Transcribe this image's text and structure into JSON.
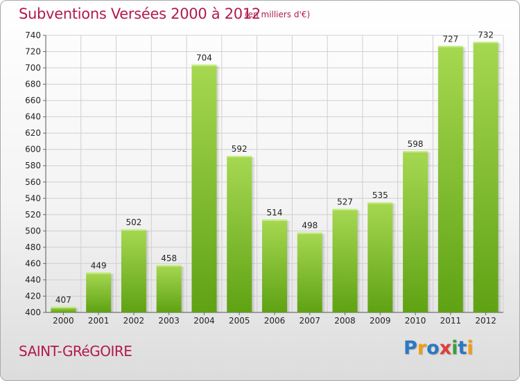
{
  "header": {
    "title": "Subventions Versées 2000 à 2012",
    "subtitle": "(en milliers d'€)"
  },
  "footer": {
    "place": "SAINT-GRéGOIRE",
    "logo_letters": [
      "P",
      "r",
      "o",
      "x",
      "i",
      "t",
      "i"
    ],
    "logo_colors": [
      "#2b78c4",
      "#f39c12",
      "#2b78c4",
      "#e23b3b",
      "#3aa03a",
      "#2b78c4",
      "#f39c12"
    ]
  },
  "colors": {
    "bar_top": "#a6d851",
    "bar_bottom": "#5fa214",
    "title": "#b2194f",
    "grid": "#cfcfcf"
  },
  "chart_data": {
    "type": "bar",
    "title": "Subventions Versées 2000 à 2012",
    "subtitle": "(en milliers d'€)",
    "xlabel": "",
    "ylabel": "",
    "categories": [
      "2000",
      "2001",
      "2002",
      "2003",
      "2004",
      "2005",
      "2006",
      "2007",
      "2008",
      "2009",
      "2010",
      "2011",
      "2012"
    ],
    "values": [
      407,
      449,
      502,
      458,
      704,
      592,
      514,
      498,
      527,
      535,
      598,
      727,
      732
    ],
    "ylim": [
      400,
      740
    ],
    "yticks": [
      400,
      420,
      440,
      460,
      480,
      500,
      520,
      540,
      560,
      580,
      600,
      620,
      640,
      660,
      680,
      700,
      720,
      740
    ],
    "grid": true,
    "legend": "none"
  }
}
